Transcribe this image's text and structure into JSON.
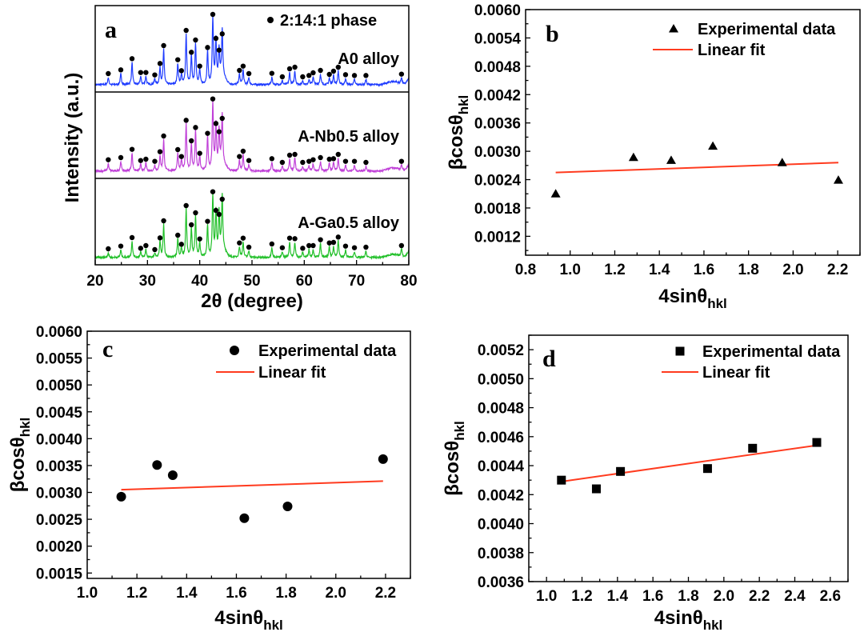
{
  "chart_data": [
    {
      "panel": "a",
      "type": "line",
      "xlabel": "2θ (degree)",
      "ylabel": "Intensity (a.u.)",
      "xlim": [
        20,
        80
      ],
      "xticks": [
        "20",
        "30",
        "40",
        "50",
        "60",
        "70",
        "80"
      ],
      "legend": {
        "marker": "circle",
        "label": "2:14:1 phase",
        "placement": "top-right"
      },
      "peak_positions": [
        22.5,
        24.9,
        27.05,
        28.7,
        29.7,
        31.4,
        32.4,
        33.1,
        35.8,
        36.5,
        37.4,
        38.4,
        39.2,
        40.0,
        41.5,
        42.5,
        43.1,
        43.7,
        44.3,
        47.6,
        48.3,
        49.4,
        53.8,
        55.8,
        57.2,
        58.2,
        59.7,
        60.9,
        61.7,
        63.1,
        64.8,
        65.6,
        66.5,
        67.9,
        69.6,
        71.8,
        78.6
      ],
      "series": [
        {
          "name": "A0 alloy",
          "color": "#1f3cff",
          "peak_intensities": [
            27,
            41,
            83,
            31,
            31,
            22,
            65,
            132,
            79,
            38,
            189,
            107,
            153,
            55,
            125,
            249,
            159,
            115,
            176,
            39,
            55,
            27,
            28,
            15,
            45,
            51,
            15,
            20,
            30,
            39,
            24,
            36,
            51,
            23,
            20,
            20,
            25
          ]
        },
        {
          "name": "A-Nb0.5 alloy",
          "color": "#c040d8",
          "peak_intensities": [
            28,
            36,
            67,
            25,
            30,
            22,
            58,
            117,
            66,
            40,
            176,
            99,
            149,
            52,
            127,
            256,
            164,
            133,
            183,
            40,
            60,
            25,
            32,
            18,
            45,
            48,
            18,
            22,
            28,
            36,
            30,
            32,
            48,
            22,
            22,
            18,
            22
          ]
        },
        {
          "name": "A-Ga0.5 alloy",
          "color": "#22c02a",
          "peak_intensities": [
            18,
            28,
            60,
            20,
            30,
            15,
            59,
            123,
            69,
            35,
            180,
            108,
            153,
            55,
            121,
            232,
            162,
            147,
            204,
            40,
            58,
            24,
            36,
            22,
            58,
            56,
            20,
            30,
            30,
            52,
            40,
            42,
            62,
            28,
            22,
            24,
            30
          ]
        }
      ]
    },
    {
      "panel": "b",
      "type": "scatter",
      "xlabel": "4sinθ",
      "xlabel_sub": "hkl",
      "ylabel": "βcosθ",
      "ylabel_sub": "hkl",
      "xlim": [
        0.8,
        2.3
      ],
      "ylim": [
        0.0008,
        0.006
      ],
      "xticks": [
        "0.8",
        "1.0",
        "1.2",
        "1.4",
        "1.6",
        "1.8",
        "2.0",
        "2.2"
      ],
      "yticks": [
        "0.0012",
        "0.0018",
        "0.0024",
        "0.0030",
        "0.0036",
        "0.0042",
        "0.0048",
        "0.0054",
        "0.0060"
      ],
      "marker": "triangle",
      "series": [
        {
          "name": "Experimental data",
          "x": [
            0.935,
            1.284,
            1.453,
            1.64,
            1.951,
            2.203
          ],
          "y": [
            0.0021,
            0.00287,
            0.00281,
            0.00311,
            0.00276,
            0.00239
          ]
        },
        {
          "name": "Linear fit",
          "color": "#ff3b1f",
          "x": [
            0.935,
            2.203
          ],
          "y": [
            0.00255,
            0.00276
          ]
        }
      ],
      "legend_placement": "top-right"
    },
    {
      "panel": "c",
      "type": "scatter",
      "xlabel": "4sinθ",
      "xlabel_sub": "hkl",
      "ylabel": "βcosθ",
      "ylabel_sub": "hkl",
      "xlim": [
        1.0,
        2.3
      ],
      "ylim": [
        0.0014,
        0.006
      ],
      "xticks": [
        "1.0",
        "1.2",
        "1.4",
        "1.6",
        "1.8",
        "2.0",
        "2.2"
      ],
      "yticks": [
        "0.0015",
        "0.0020",
        "0.0025",
        "0.0030",
        "0.0035",
        "0.0040",
        "0.0045",
        "0.0050",
        "0.0055",
        "0.0060"
      ],
      "marker": "circle",
      "series": [
        {
          "name": "Experimental data",
          "x": [
            1.137,
            1.281,
            1.344,
            1.632,
            1.806,
            2.19
          ],
          "y": [
            0.00292,
            0.00351,
            0.00332,
            0.00252,
            0.00274,
            0.00362
          ]
        },
        {
          "name": "Linear fit",
          "color": "#ff3b1f",
          "x": [
            1.137,
            2.19
          ],
          "y": [
            0.00305,
            0.00321
          ]
        }
      ],
      "legend_placement": "top-right"
    },
    {
      "panel": "d",
      "type": "scatter",
      "xlabel": "4sinθ",
      "xlabel_sub": "hkl",
      "ylabel": "βcosθ",
      "ylabel_sub": "hkl",
      "xlim": [
        0.9,
        2.7
      ],
      "ylim": [
        0.0036,
        0.0053
      ],
      "xticks": [
        "1.0",
        "1.2",
        "1.4",
        "1.6",
        "1.8",
        "2.0",
        "2.2",
        "2.4",
        "2.6"
      ],
      "yticks": [
        "0.0036",
        "0.0038",
        "0.0040",
        "0.0042",
        "0.0044",
        "0.0046",
        "0.0048",
        "0.0050",
        "0.0052"
      ],
      "marker": "square",
      "series": [
        {
          "name": "Experimental data",
          "x": [
            1.084,
            1.281,
            1.417,
            1.908,
            2.162,
            2.524
          ],
          "y": [
            0.0043,
            0.00424,
            0.00436,
            0.00438,
            0.00452,
            0.00456
          ]
        },
        {
          "name": "Linear fit",
          "color": "#ff3b1f",
          "x": [
            1.084,
            2.524
          ],
          "y": [
            0.00429,
            0.00454
          ]
        }
      ],
      "legend_placement": "top-right"
    }
  ]
}
